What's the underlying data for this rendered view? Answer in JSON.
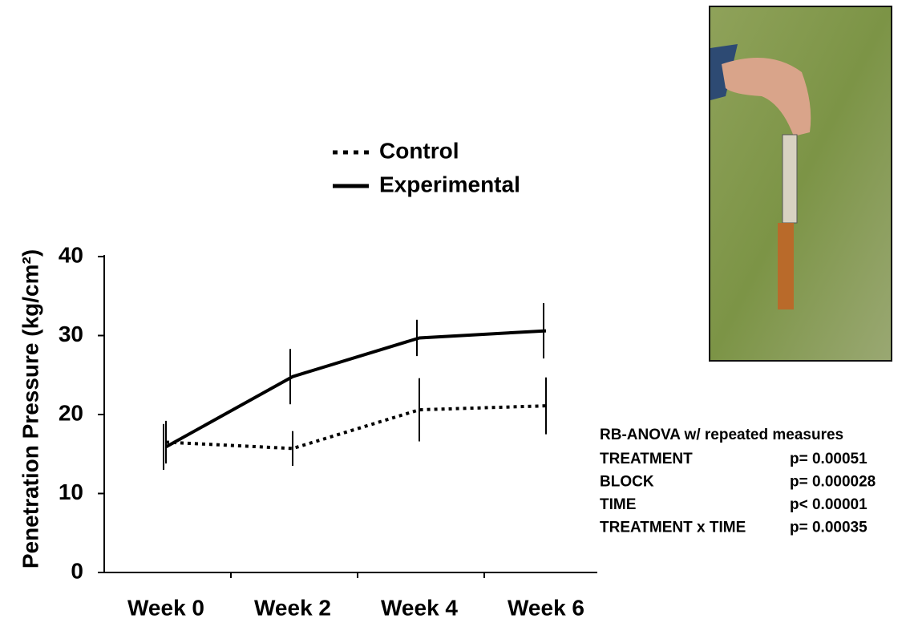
{
  "chart_data": {
    "type": "line",
    "y_label": "Penetration Pressure (kg/cm²)",
    "categories": [
      "Week 0",
      "Week 2",
      "Week 4",
      "Week 6"
    ],
    "series": [
      {
        "name": "Control",
        "color": "#000000",
        "style": "dotted",
        "values": [
          16.5,
          15.7,
          20.6,
          21.1
        ],
        "errors": [
          2.7,
          2.2,
          4,
          3.6
        ]
      },
      {
        "name": "Experimental",
        "color": "#000000",
        "style": "solid",
        "values": [
          15.9,
          24.8,
          29.7,
          30.6
        ],
        "errors": [
          2.9,
          3.5,
          2.3,
          3.5
        ]
      }
    ],
    "ylim": [
      0,
      40
    ],
    "yticks": [
      0,
      10,
      20,
      30,
      40
    ],
    "grid": false,
    "annotations": {
      "title": "RB-ANOVA w/ repeated measures",
      "rows": [
        [
          "TREATMENT",
          "p= 0.00051"
        ],
        [
          "BLOCK",
          "p= 0.000028"
        ],
        [
          "TIME",
          "p< 0.00001"
        ],
        [
          "TREATMENT x TIME",
          "p= 0.00035"
        ]
      ]
    }
  }
}
